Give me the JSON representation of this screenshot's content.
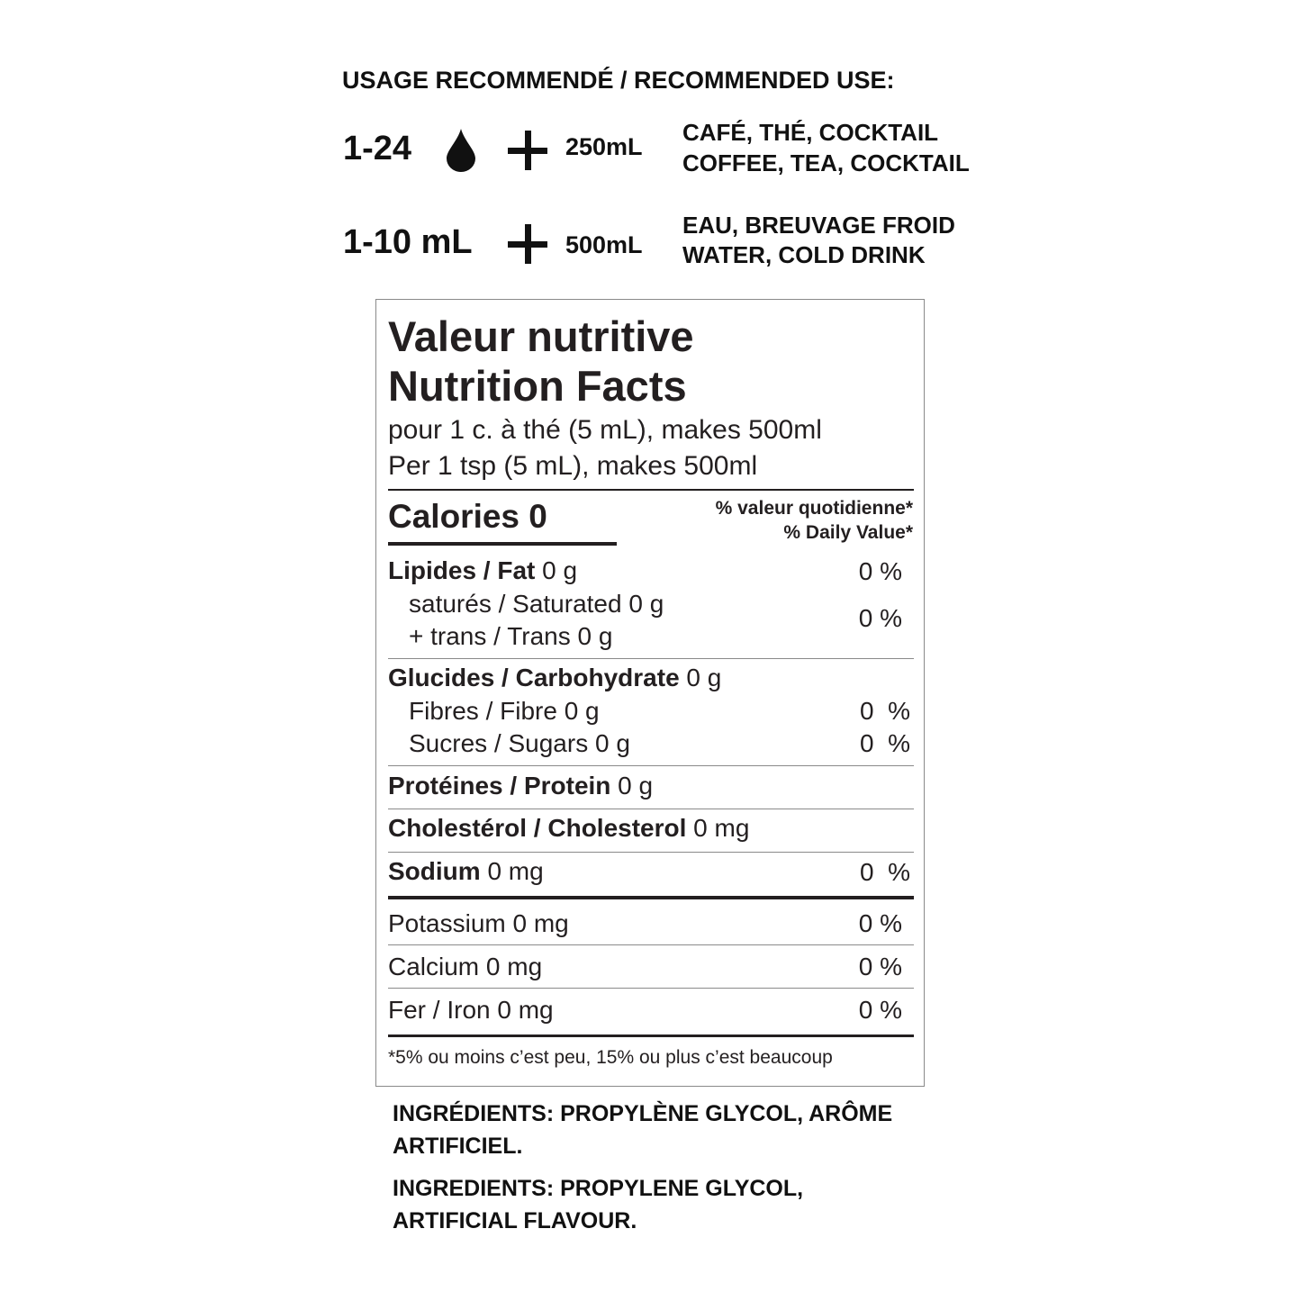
{
  "usage": {
    "heading": "USAGE RECOMMENDÉ / RECOMMENDED USE:",
    "rows": [
      {
        "amount": "1-24",
        "icon": "drop-icon",
        "volume": "250mL",
        "uses_fr": "CAFÉ, THÉ, COCKTAIL",
        "uses_en": "COFFEE, TEA, COCKTAIL"
      },
      {
        "amount": "1-10 mL",
        "volume": "500mL",
        "uses_fr": "EAU, BREUVAGE FROID",
        "uses_en": "WATER, COLD DRINK"
      }
    ]
  },
  "nutrition": {
    "title_fr": "Valeur nutritive",
    "title_en": "Nutrition Facts",
    "serving_fr": "pour 1 c. à thé (5 mL), makes 500ml",
    "serving_en": "Per 1 tsp (5 mL), makes 500ml",
    "calories": "Calories 0",
    "dv_fr": "% valeur quotidienne*",
    "dv_en": "% Daily Value*",
    "fat": {
      "label": "Lipides / Fat",
      "amount": " 0 g",
      "dv": "0 %"
    },
    "saturated": "saturés / Saturated 0 g",
    "trans": "+ trans / Trans 0 g",
    "sat_trans_dv": "0 %",
    "carb": {
      "label": "Glucides / Carbohydrate",
      "amount": " 0 g"
    },
    "fibre": {
      "label": "Fibres / Fibre 0 g",
      "dv": "0  %"
    },
    "sugars": {
      "label": "Sucres / Sugars 0 g",
      "dv": "0  %"
    },
    "protein": {
      "label": "Protéines / Protein",
      "amount": " 0 g"
    },
    "cholesterol": {
      "label": "Cholestérol / Cholesterol",
      "amount": " 0 mg"
    },
    "sodium": {
      "label": "Sodium",
      "amount": " 0 mg",
      "dv": "0  %"
    },
    "potassium": {
      "label": "Potassium 0 mg",
      "dv": "0 %"
    },
    "calcium": {
      "label": "Calcium 0 mg",
      "dv": "0 %"
    },
    "iron": {
      "label": "Fer / Iron 0 mg",
      "dv": "0 %"
    },
    "footnote": "*5% ou moins c’est peu, 15% ou plus c’est beaucoup"
  },
  "ingredients": {
    "fr_line1": "INGRÉDIENTS: PROPYLÈNE GLYCOL, ARÔME",
    "fr_line2": "ARTIFICIEL.",
    "en_line1": "INGREDIENTS: PROPYLENE GLYCOL,",
    "en_line2": "ARTIFICIAL FLAVOUR."
  }
}
